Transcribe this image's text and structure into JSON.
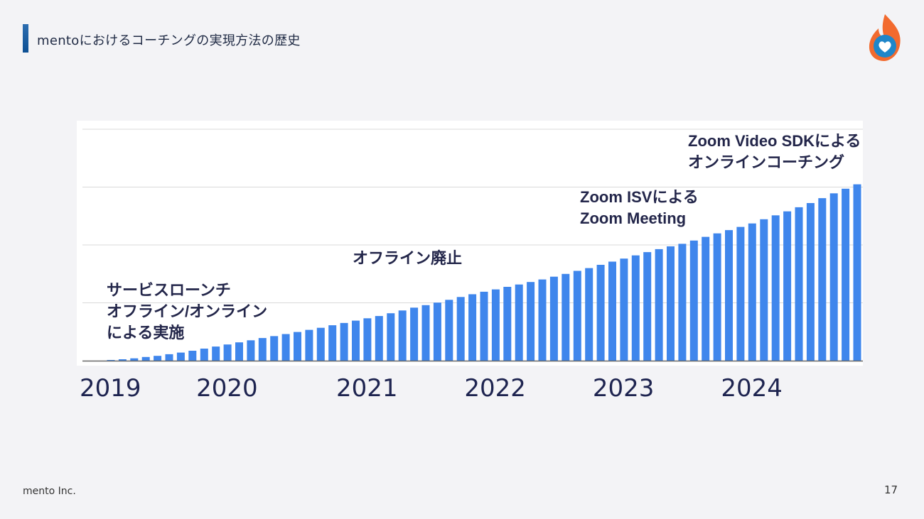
{
  "slide": {
    "title": "mentoにおけるコーチングの実現方法の歴史",
    "company": "mento Inc.",
    "page_number": "17",
    "logo_icon": "flame-heart-icon"
  },
  "colors": {
    "bar": "#3f86ec",
    "accent": "#0d4f93",
    "text": "#23264a",
    "gridline": "#d9d9d9"
  },
  "chart_data": {
    "type": "bar",
    "title": "",
    "xlabel": "",
    "ylabel": "",
    "grid": true,
    "ylim": [
      0,
      100
    ],
    "x_tick_labels": [
      "2019",
      "2020",
      "2021",
      "2022",
      "2023",
      "2024"
    ],
    "x_tick_categories": [
      0,
      10,
      22,
      33,
      44,
      55
    ],
    "values": [
      0.3,
      0.6,
      1.0,
      1.6,
      2.1,
      2.8,
      3.5,
      4.3,
      5.2,
      6.1,
      7.0,
      7.9,
      8.8,
      9.8,
      10.6,
      11.5,
      12.4,
      13.3,
      14.2,
      15.3,
      16.3,
      17.3,
      18.3,
      19.3,
      20.5,
      21.7,
      22.9,
      24.0,
      25.1,
      26.3,
      27.5,
      28.7,
      29.8,
      30.8,
      31.9,
      32.9,
      34.0,
      35.1,
      36.3,
      37.5,
      38.8,
      40.0,
      41.4,
      42.8,
      44.1,
      45.5,
      46.9,
      48.2,
      49.4,
      50.5,
      51.9,
      53.5,
      55.0,
      56.4,
      57.8,
      59.3,
      61.1,
      62.8,
      64.5,
      66.3,
      68.1,
      70.2,
      72.3,
      74.3,
      76.2
    ]
  },
  "annotations": [
    {
      "text": "サービスローンチ\nオフライン/オンライン\nによる実施"
    },
    {
      "text": "オフライン廃止"
    },
    {
      "text": "Zoom ISVによる\nZoom Meeting"
    },
    {
      "text": "Zoom Video SDKによる\nオンラインコーチング"
    }
  ]
}
